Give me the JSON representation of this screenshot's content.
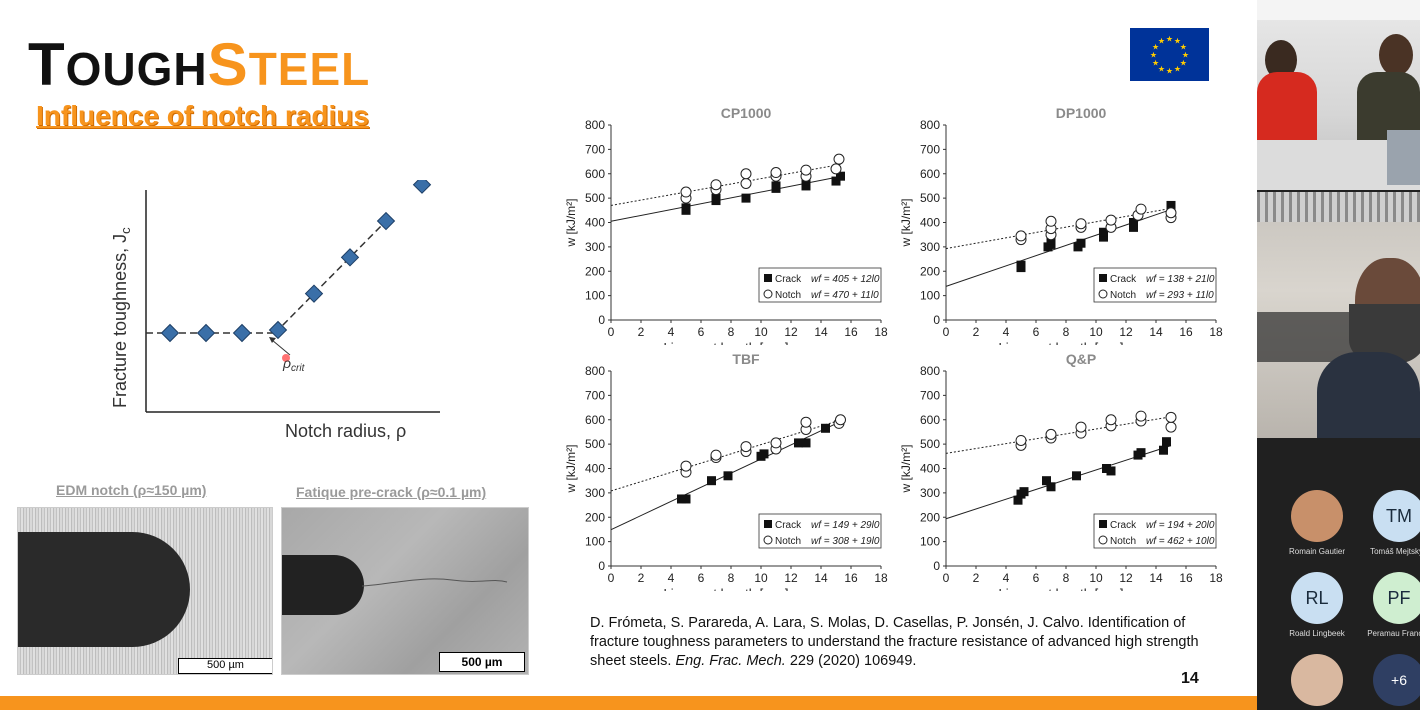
{
  "slide": {
    "logo": {
      "t": "T",
      "ough": "OUGH",
      "s": "S",
      "teel": "TEEL"
    },
    "title": "Influence of notch radius",
    "schematic": {
      "ylabel": "Fracture toughness, J",
      "ylabel_sub": "c",
      "xlabel": "Notch radius, ρ",
      "annotation": "ρ",
      "annotation_sub": "crit"
    },
    "micrographs": [
      {
        "label": "EDM notch (ρ≈150 µm)",
        "scalebar": "500 µm"
      },
      {
        "label": "Fatique pre-crack (ρ≈0.1 µm)",
        "scalebar": "500 µm"
      }
    ],
    "reference": {
      "authors": "D. Frómeta, S. Parareda, A. Lara, S. Molas, D. Casellas, P. Jonsén, J. Calvo. Identification of fracture toughness parameters to understand the fracture resistance of advanced high strength sheet steels. ",
      "journal": "Eng. Frac. Mech.",
      "tail": " 229 (2020) 106949."
    },
    "page_number": "14"
  },
  "chart_data": [
    {
      "type": "scatter",
      "title": "CP1000",
      "xlabel": "Ligament length [mm]",
      "ylabel": "w [kJ/m²]",
      "xlim": [
        0,
        18
      ],
      "ylim": [
        0,
        800
      ],
      "xticks": [
        "0",
        "2",
        "4",
        "6",
        "8",
        "10",
        "12",
        "14",
        "16",
        "18"
      ],
      "yticks": [
        "0",
        "100",
        "200",
        "300",
        "400",
        "500",
        "600",
        "700",
        "800"
      ],
      "series": [
        {
          "name": "Crack",
          "equation": "wf = 405 + 12l0",
          "intercept": 405,
          "slope": 12,
          "points": [
            [
              5,
              450
            ],
            [
              5,
              460
            ],
            [
              7,
              490
            ],
            [
              7,
              500
            ],
            [
              9,
              500
            ],
            [
              11,
              540
            ],
            [
              11,
              550
            ],
            [
              13,
              550
            ],
            [
              13,
              570
            ],
            [
              15,
              570
            ],
            [
              15.3,
              590
            ]
          ]
        },
        {
          "name": "Notch",
          "equation": "wf = 470 + 11l0",
          "intercept": 470,
          "slope": 11,
          "points": [
            [
              5,
              500
            ],
            [
              5,
              525
            ],
            [
              7,
              535
            ],
            [
              7,
              555
            ],
            [
              9,
              560
            ],
            [
              9,
              600
            ],
            [
              11,
              590
            ],
            [
              11,
              605
            ],
            [
              13,
              590
            ],
            [
              13,
              615
            ],
            [
              15,
              620
            ],
            [
              15.2,
              660
            ]
          ]
        }
      ]
    },
    {
      "type": "scatter",
      "title": "DP1000",
      "xlabel": "Ligament length [mm]",
      "ylabel": "w [kJ/m²]",
      "xlim": [
        0,
        18
      ],
      "ylim": [
        0,
        800
      ],
      "xticks": [
        "0",
        "2",
        "4",
        "6",
        "8",
        "10",
        "12",
        "14",
        "16",
        "18"
      ],
      "yticks": [
        "0",
        "100",
        "200",
        "300",
        "400",
        "500",
        "600",
        "700",
        "800"
      ],
      "series": [
        {
          "name": "Crack",
          "equation": "wf = 138 + 21l0",
          "intercept": 138,
          "slope": 21,
          "points": [
            [
              5,
              215
            ],
            [
              5,
              225
            ],
            [
              6.8,
              300
            ],
            [
              7,
              310
            ],
            [
              7,
              330
            ],
            [
              8.8,
              300
            ],
            [
              9,
              315
            ],
            [
              10.5,
              340
            ],
            [
              10.5,
              360
            ],
            [
              12.5,
              380
            ],
            [
              12.5,
              400
            ],
            [
              15,
              440
            ],
            [
              15,
              470
            ]
          ]
        },
        {
          "name": "Notch",
          "equation": "wf = 293 + 11l0",
          "intercept": 293,
          "slope": 11,
          "points": [
            [
              5,
              330
            ],
            [
              5,
              345
            ],
            [
              7,
              350
            ],
            [
              7,
              375
            ],
            [
              7,
              405
            ],
            [
              9,
              380
            ],
            [
              9,
              395
            ],
            [
              11,
              380
            ],
            [
              11,
              410
            ],
            [
              12.8,
              430
            ],
            [
              13,
              455
            ],
            [
              15,
              420
            ],
            [
              15,
              440
            ]
          ]
        }
      ]
    },
    {
      "type": "scatter",
      "title": "TBF",
      "xlabel": "Ligament length [mm]",
      "ylabel": "w [kJ/m²]",
      "xlim": [
        0,
        18
      ],
      "ylim": [
        0,
        800
      ],
      "xticks": [
        "0",
        "2",
        "4",
        "6",
        "8",
        "10",
        "12",
        "14",
        "16",
        "18"
      ],
      "yticks": [
        "0",
        "100",
        "200",
        "300",
        "400",
        "500",
        "600",
        "700",
        "800"
      ],
      "series": [
        {
          "name": "Crack",
          "equation": "wf = 149 + 29l0",
          "intercept": 149,
          "slope": 29,
          "points": [
            [
              4.7,
              275
            ],
            [
              5,
              275
            ],
            [
              6.7,
              350
            ],
            [
              7.8,
              370
            ],
            [
              10,
              450
            ],
            [
              10.2,
              460
            ],
            [
              12.5,
              505
            ],
            [
              13,
              505
            ],
            [
              14.3,
              565
            ]
          ]
        },
        {
          "name": "Notch",
          "equation": "wf = 308 + 19l0",
          "intercept": 308,
          "slope": 19,
          "points": [
            [
              5,
              385
            ],
            [
              5,
              410
            ],
            [
              7,
              445
            ],
            [
              7,
              455
            ],
            [
              9,
              470
            ],
            [
              9,
              490
            ],
            [
              11,
              480
            ],
            [
              11,
              505
            ],
            [
              13,
              560
            ],
            [
              13,
              590
            ],
            [
              15.2,
              585
            ],
            [
              15.3,
              600
            ]
          ]
        }
      ]
    },
    {
      "type": "scatter",
      "title": "Q&P",
      "xlabel": "Ligament length [mm]",
      "ylabel": "w [kJ/m²]",
      "xlim": [
        0,
        18
      ],
      "ylim": [
        0,
        800
      ],
      "xticks": [
        "0",
        "2",
        "4",
        "6",
        "8",
        "10",
        "12",
        "14",
        "16",
        "18"
      ],
      "yticks": [
        "0",
        "100",
        "200",
        "300",
        "400",
        "500",
        "600",
        "700",
        "800"
      ],
      "series": [
        {
          "name": "Crack",
          "equation": "wf = 194 + 20l0",
          "intercept": 194,
          "slope": 20,
          "points": [
            [
              4.8,
              270
            ],
            [
              5,
              295
            ],
            [
              5.2,
              305
            ],
            [
              6.7,
              350
            ],
            [
              7,
              325
            ],
            [
              8.7,
              370
            ],
            [
              10.7,
              400
            ],
            [
              11,
              390
            ],
            [
              12.8,
              455
            ],
            [
              13,
              465
            ],
            [
              14.5,
              475
            ],
            [
              14.7,
              510
            ]
          ]
        },
        {
          "name": "Notch",
          "equation": "wf = 462 + 10l0",
          "intercept": 462,
          "slope": 10,
          "points": [
            [
              5,
              495
            ],
            [
              5,
              515
            ],
            [
              7,
              525
            ],
            [
              7,
              540
            ],
            [
              9,
              545
            ],
            [
              9,
              570
            ],
            [
              11,
              575
            ],
            [
              11,
              600
            ],
            [
              13,
              595
            ],
            [
              13,
              615
            ],
            [
              15,
              570
            ],
            [
              15,
              610
            ]
          ]
        }
      ]
    }
  ],
  "schematic_data": {
    "plateau_points": [
      0.1,
      0.25,
      0.4
    ],
    "rise_points": [
      0.55,
      0.7,
      0.85,
      1.0,
      1.15
    ]
  },
  "participants": [
    {
      "name": "Romain Gautier",
      "initials": "",
      "avatar_color": "#c8906a"
    },
    {
      "name": "Tomáš Mejtský (",
      "initials": "TM",
      "avatar_color": "#c9dff2"
    },
    {
      "name": "Roald Lingbeek",
      "initials": "RL",
      "avatar_color": "#c9dff2"
    },
    {
      "name": "Peramau Frances",
      "initials": "PF",
      "avatar_color": "#cfeed0"
    },
    {
      "name": "",
      "initials": "",
      "avatar_color": "#d9b8a0"
    },
    {
      "name": "",
      "initials": "+6",
      "avatar_color": "#2f3f63"
    }
  ],
  "colors": {
    "accent": "#f7941d",
    "eu_blue": "#003399",
    "eu_gold": "#ffcc00",
    "marker_blue": "#3a6fa8"
  }
}
